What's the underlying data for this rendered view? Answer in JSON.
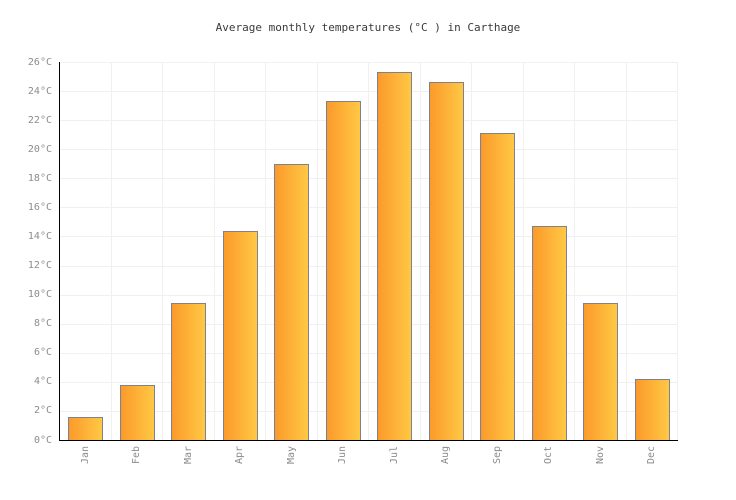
{
  "title": "Average monthly temperatures (°C ) in Carthage",
  "colors": {
    "background": "#FFFFFF",
    "bar_gradient_left": "#FB9A2B",
    "bar_gradient_right": "#FFC844",
    "bar_border": "#7D8191",
    "grid": "#F0F0F0",
    "axis": "#000000",
    "tick_label": "#8C8C8C",
    "title": "#3A3A3A"
  },
  "chart_data": {
    "type": "bar",
    "title": "Average monthly temperatures (°C ) in Carthage",
    "categories": [
      "Jan",
      "Feb",
      "Mar",
      "Apr",
      "May",
      "Jun",
      "Jul",
      "Aug",
      "Sep",
      "Oct",
      "Nov",
      "Dec"
    ],
    "values": [
      1.6,
      3.8,
      9.4,
      14.4,
      19.0,
      23.3,
      25.3,
      24.6,
      21.1,
      14.7,
      9.4,
      4.2
    ],
    "xlabel": "",
    "ylabel": "",
    "ylim": [
      0,
      26
    ],
    "ytick_step": 2,
    "ytick_suffix": "°C",
    "ytick_labels": [
      "0°C",
      "2°C",
      "4°C",
      "6°C",
      "8°C",
      "10°C",
      "12°C",
      "14°C",
      "16°C",
      "18°C",
      "20°C",
      "22°C",
      "24°C",
      "26°C"
    ],
    "grid": true,
    "legend": "none",
    "bar_orientation": "vertical"
  }
}
